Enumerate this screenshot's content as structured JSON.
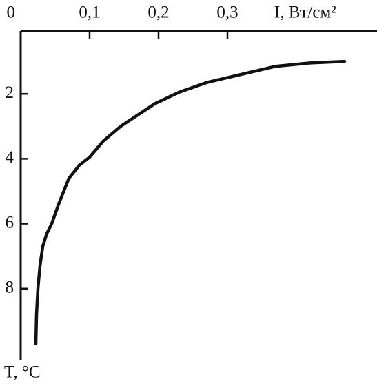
{
  "chart_data": {
    "type": "line",
    "x_label": "I, Вт/см²",
    "y_label": "T, °C",
    "x": [
      0.022,
      0.023,
      0.025,
      0.028,
      0.032,
      0.038,
      0.045,
      0.055,
      0.07,
      0.085,
      0.1,
      0.12,
      0.145,
      0.17,
      0.195,
      0.23,
      0.27,
      0.32,
      0.37,
      0.42,
      0.47
    ],
    "series": [
      {
        "color": "#111111",
        "values": [
          9.7,
          8.8,
          8.0,
          7.3,
          6.7,
          6.3,
          6.0,
          5.4,
          4.6,
          4.2,
          3.95,
          3.45,
          3.0,
          2.65,
          2.3,
          1.95,
          1.65,
          1.4,
          1.15,
          1.05,
          1.0
        ]
      }
    ],
    "xlim": [
      0,
      0.517
    ],
    "ylim": [
      0,
      10.15
    ],
    "y_inverted": true,
    "xticks": [
      0,
      {
        "value": 0.1,
        "label": "0,1"
      },
      {
        "value": 0.2,
        "label": "0,2"
      },
      {
        "value": 0.3,
        "label": "0,3"
      }
    ],
    "yticks": [
      2,
      4,
      6,
      8
    ]
  }
}
